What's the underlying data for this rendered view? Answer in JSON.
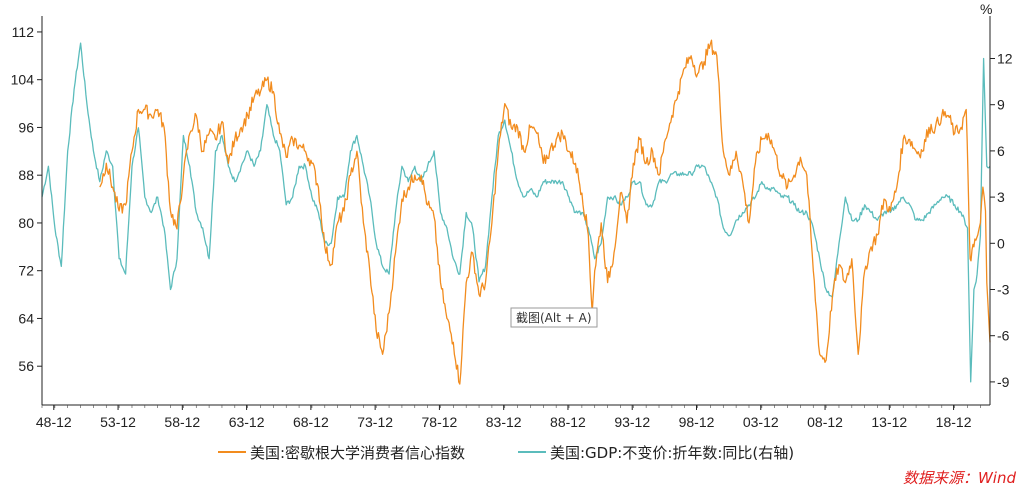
{
  "chart_data": {
    "type": "line",
    "x_tick_labels": [
      "48-12",
      "53-12",
      "58-12",
      "63-12",
      "68-12",
      "73-12",
      "78-12",
      "83-12",
      "88-12",
      "93-12",
      "98-12",
      "03-12",
      "08-12",
      "13-12",
      "18-12"
    ],
    "x_range": [
      1948.0,
      2021.75
    ],
    "left_axis": {
      "ticks": [
        56,
        64,
        72,
        80,
        88,
        96,
        104,
        112
      ],
      "ylim": [
        49.5,
        114
      ]
    },
    "right_axis": {
      "unit_label": "%",
      "ticks": [
        -9,
        -6,
        -3,
        0,
        3,
        6,
        9,
        12
      ],
      "ylim": [
        -10.5,
        14.5
      ]
    },
    "grid": false,
    "legend_position": "bottom",
    "series": [
      {
        "name": "美国:密歇根大学消费者信心指数",
        "axis": "left",
        "color": "#f28c1e",
        "points": [
          [
            1952.5,
            86
          ],
          [
            1953.0,
            90
          ],
          [
            1953.5,
            86
          ],
          [
            1954.0,
            82
          ],
          [
            1954.5,
            83
          ],
          [
            1955.0,
            92
          ],
          [
            1955.5,
            99
          ],
          [
            1956.0,
            99
          ],
          [
            1956.5,
            98
          ],
          [
            1957.0,
            99
          ],
          [
            1957.5,
            96
          ],
          [
            1958.0,
            82
          ],
          [
            1958.5,
            79
          ],
          [
            1959.0,
            88
          ],
          [
            1959.5,
            95
          ],
          [
            1960.0,
            98
          ],
          [
            1960.5,
            92
          ],
          [
            1961.0,
            95
          ],
          [
            1961.5,
            94
          ],
          [
            1962.0,
            97
          ],
          [
            1962.5,
            90
          ],
          [
            1963.0,
            94
          ],
          [
            1963.5,
            96
          ],
          [
            1964.0,
            98
          ],
          [
            1964.5,
            101
          ],
          [
            1965.0,
            102
          ],
          [
            1965.5,
            104
          ],
          [
            1966.0,
            102
          ],
          [
            1966.5,
            95
          ],
          [
            1967.0,
            91
          ],
          [
            1967.5,
            94
          ],
          [
            1968.0,
            93
          ],
          [
            1968.5,
            92
          ],
          [
            1969.0,
            90
          ],
          [
            1969.5,
            86
          ],
          [
            1970.0,
            76
          ],
          [
            1970.5,
            73
          ],
          [
            1971.0,
            80
          ],
          [
            1971.5,
            82
          ],
          [
            1972.0,
            88
          ],
          [
            1972.5,
            92
          ],
          [
            1973.0,
            80
          ],
          [
            1973.5,
            72
          ],
          [
            1974.0,
            62
          ],
          [
            1974.5,
            58
          ],
          [
            1975.0,
            65
          ],
          [
            1975.5,
            75
          ],
          [
            1976.0,
            84
          ],
          [
            1976.5,
            86
          ],
          [
            1977.0,
            88
          ],
          [
            1977.5,
            88
          ],
          [
            1978.0,
            83
          ],
          [
            1978.5,
            81
          ],
          [
            1979.0,
            70
          ],
          [
            1979.5,
            64
          ],
          [
            1980.0,
            60
          ],
          [
            1980.5,
            53
          ],
          [
            1981.0,
            70
          ],
          [
            1981.5,
            75
          ],
          [
            1982.0,
            68
          ],
          [
            1982.5,
            70
          ],
          [
            1983.0,
            80
          ],
          [
            1983.5,
            92
          ],
          [
            1984.0,
            100
          ],
          [
            1984.5,
            96
          ],
          [
            1985.0,
            96
          ],
          [
            1985.5,
            92
          ],
          [
            1986.0,
            96
          ],
          [
            1986.5,
            95
          ],
          [
            1987.0,
            90
          ],
          [
            1987.5,
            92
          ],
          [
            1988.0,
            94
          ],
          [
            1988.5,
            95
          ],
          [
            1989.0,
            92
          ],
          [
            1989.5,
            90
          ],
          [
            1990.0,
            85
          ],
          [
            1990.5,
            78
          ],
          [
            1990.8,
            65
          ],
          [
            1991.0,
            72
          ],
          [
            1991.5,
            80
          ],
          [
            1992.0,
            70
          ],
          [
            1992.5,
            75
          ],
          [
            1993.0,
            85
          ],
          [
            1993.5,
            80
          ],
          [
            1994.0,
            90
          ],
          [
            1994.5,
            94
          ],
          [
            1995.0,
            90
          ],
          [
            1995.5,
            92
          ],
          [
            1996.0,
            88
          ],
          [
            1996.5,
            94
          ],
          [
            1997.0,
            98
          ],
          [
            1997.5,
            102
          ],
          [
            1998.0,
            106
          ],
          [
            1998.5,
            108
          ],
          [
            1999.0,
            105
          ],
          [
            1999.5,
            107
          ],
          [
            2000.0,
            110
          ],
          [
            2000.5,
            108
          ],
          [
            2001.0,
            92
          ],
          [
            2001.5,
            88
          ],
          [
            2002.0,
            92
          ],
          [
            2002.5,
            87
          ],
          [
            2003.0,
            80
          ],
          [
            2003.5,
            90
          ],
          [
            2004.0,
            94
          ],
          [
            2004.5,
            95
          ],
          [
            2005.0,
            92
          ],
          [
            2005.5,
            88
          ],
          [
            2006.0,
            86
          ],
          [
            2006.5,
            88
          ],
          [
            2007.0,
            91
          ],
          [
            2007.5,
            88
          ],
          [
            2008.0,
            72
          ],
          [
            2008.5,
            58
          ],
          [
            2009.0,
            57
          ],
          [
            2009.5,
            68
          ],
          [
            2010.0,
            73
          ],
          [
            2010.5,
            70
          ],
          [
            2011.0,
            74
          ],
          [
            2011.5,
            58
          ],
          [
            2012.0,
            72
          ],
          [
            2012.5,
            76
          ],
          [
            2013.0,
            78
          ],
          [
            2013.5,
            84
          ],
          [
            2014.0,
            82
          ],
          [
            2014.5,
            86
          ],
          [
            2015.0,
            94
          ],
          [
            2015.5,
            94
          ],
          [
            2016.0,
            92
          ],
          [
            2016.5,
            92
          ],
          [
            2017.0,
            96
          ],
          [
            2017.5,
            96
          ],
          [
            2018.0,
            98
          ],
          [
            2018.5,
            98
          ],
          [
            2019.0,
            95
          ],
          [
            2019.5,
            96
          ],
          [
            2019.9,
            99
          ],
          [
            2020.2,
            74
          ],
          [
            2020.5,
            76
          ],
          [
            2020.8,
            78
          ],
          [
            2021.0,
            80
          ],
          [
            2021.2,
            86
          ],
          [
            2021.4,
            82
          ],
          [
            2021.5,
            70
          ],
          [
            2021.6,
            66
          ],
          [
            2021.75,
            60
          ]
        ]
      },
      {
        "name": "美国:GDP:不变价:折年数:同比(右轴)",
        "axis": "right",
        "color": "#5bbcbc",
        "points": [
          [
            1948.0,
            3
          ],
          [
            1948.5,
            5
          ],
          [
            1949.0,
            1
          ],
          [
            1949.5,
            -1.5
          ],
          [
            1950.0,
            6
          ],
          [
            1950.5,
            10
          ],
          [
            1951.0,
            13
          ],
          [
            1951.5,
            9
          ],
          [
            1952.0,
            6
          ],
          [
            1952.5,
            4
          ],
          [
            1953.0,
            6
          ],
          [
            1953.5,
            5
          ],
          [
            1954.0,
            -1
          ],
          [
            1954.5,
            -2
          ],
          [
            1955.0,
            5
          ],
          [
            1955.5,
            7.5
          ],
          [
            1956.0,
            3
          ],
          [
            1956.5,
            2
          ],
          [
            1957.0,
            3
          ],
          [
            1957.5,
            1
          ],
          [
            1958.0,
            -3
          ],
          [
            1958.5,
            -1
          ],
          [
            1959.0,
            7
          ],
          [
            1959.5,
            5
          ],
          [
            1960.0,
            2
          ],
          [
            1960.5,
            1
          ],
          [
            1961.0,
            -1
          ],
          [
            1961.5,
            6
          ],
          [
            1962.0,
            7
          ],
          [
            1962.5,
            5
          ],
          [
            1963.0,
            4
          ],
          [
            1963.5,
            5
          ],
          [
            1964.0,
            6
          ],
          [
            1964.5,
            5
          ],
          [
            1965.0,
            6
          ],
          [
            1965.5,
            9
          ],
          [
            1966.0,
            7
          ],
          [
            1966.5,
            6
          ],
          [
            1967.0,
            2.5
          ],
          [
            1967.5,
            3
          ],
          [
            1968.0,
            5
          ],
          [
            1968.5,
            5
          ],
          [
            1969.0,
            3
          ],
          [
            1969.5,
            2
          ],
          [
            1970.0,
            0
          ],
          [
            1970.5,
            0
          ],
          [
            1971.0,
            3
          ],
          [
            1971.5,
            3
          ],
          [
            1972.0,
            6
          ],
          [
            1972.5,
            7
          ],
          [
            1973.0,
            5
          ],
          [
            1973.5,
            3
          ],
          [
            1974.0,
            0
          ],
          [
            1974.5,
            -1.5
          ],
          [
            1975.0,
            -2
          ],
          [
            1975.5,
            2
          ],
          [
            1976.0,
            5
          ],
          [
            1976.5,
            4
          ],
          [
            1977.0,
            5
          ],
          [
            1977.5,
            4
          ],
          [
            1978.0,
            5
          ],
          [
            1978.5,
            6
          ],
          [
            1979.0,
            2
          ],
          [
            1979.5,
            1
          ],
          [
            1980.0,
            -1
          ],
          [
            1980.5,
            -2
          ],
          [
            1981.0,
            2
          ],
          [
            1981.5,
            1
          ],
          [
            1982.0,
            -2.5
          ],
          [
            1982.5,
            -1.5
          ],
          [
            1983.0,
            3
          ],
          [
            1983.5,
            7
          ],
          [
            1984.0,
            8
          ],
          [
            1984.5,
            6
          ],
          [
            1985.0,
            4
          ],
          [
            1985.5,
            3
          ],
          [
            1986.0,
            3.5
          ],
          [
            1986.5,
            3
          ],
          [
            1987.0,
            4
          ],
          [
            1987.5,
            4
          ],
          [
            1988.0,
            4
          ],
          [
            1988.5,
            4
          ],
          [
            1989.0,
            3
          ],
          [
            1989.5,
            2
          ],
          [
            1990.0,
            2
          ],
          [
            1990.5,
            1
          ],
          [
            1991.0,
            -1
          ],
          [
            1991.5,
            0
          ],
          [
            1992.0,
            3
          ],
          [
            1992.5,
            3
          ],
          [
            1993.0,
            2.5
          ],
          [
            1993.5,
            3
          ],
          [
            1994.0,
            4
          ],
          [
            1994.5,
            4
          ],
          [
            1995.0,
            2.5
          ],
          [
            1995.5,
            2.5
          ],
          [
            1996.0,
            4
          ],
          [
            1996.5,
            4
          ],
          [
            1997.0,
            4.5
          ],
          [
            1997.5,
            4.5
          ],
          [
            1998.0,
            4.5
          ],
          [
            1998.5,
            4.5
          ],
          [
            1999.0,
            5
          ],
          [
            1999.5,
            5
          ],
          [
            2000.0,
            4
          ],
          [
            2000.5,
            3
          ],
          [
            2001.0,
            1
          ],
          [
            2001.5,
            0.5
          ],
          [
            2002.0,
            1.5
          ],
          [
            2002.5,
            2
          ],
          [
            2003.0,
            2.5
          ],
          [
            2003.5,
            3
          ],
          [
            2004.0,
            4
          ],
          [
            2004.5,
            3.5
          ],
          [
            2005.0,
            3.5
          ],
          [
            2005.5,
            3
          ],
          [
            2006.0,
            3
          ],
          [
            2006.5,
            2.5
          ],
          [
            2007.0,
            2
          ],
          [
            2007.5,
            2
          ],
          [
            2008.0,
            1
          ],
          [
            2008.5,
            -1
          ],
          [
            2009.0,
            -3
          ],
          [
            2009.5,
            -3.5
          ],
          [
            2010.0,
            0
          ],
          [
            2010.5,
            3
          ],
          [
            2011.0,
            1.5
          ],
          [
            2011.5,
            1.5
          ],
          [
            2012.0,
            2.5
          ],
          [
            2012.5,
            2
          ],
          [
            2013.0,
            1.5
          ],
          [
            2013.5,
            2
          ],
          [
            2014.0,
            2
          ],
          [
            2014.5,
            2.5
          ],
          [
            2015.0,
            3
          ],
          [
            2015.5,
            2.5
          ],
          [
            2016.0,
            1.5
          ],
          [
            2016.5,
            1.5
          ],
          [
            2017.0,
            2
          ],
          [
            2017.5,
            2.5
          ],
          [
            2018.0,
            3
          ],
          [
            2018.5,
            3
          ],
          [
            2019.0,
            2.5
          ],
          [
            2019.5,
            2
          ],
          [
            2020.0,
            1
          ],
          [
            2020.25,
            -9
          ],
          [
            2020.5,
            -3
          ],
          [
            2020.75,
            -2
          ],
          [
            2021.0,
            0.5
          ],
          [
            2021.25,
            12
          ],
          [
            2021.5,
            5
          ],
          [
            2021.75,
            5
          ]
        ]
      }
    ]
  },
  "legend": {
    "items": [
      {
        "label": "美国:密歇根大学消费者信心指数",
        "color": "#f28c1e"
      },
      {
        "label": "美国:GDP:不变价:折年数:同比(右轴)",
        "color": "#5bbcbc"
      }
    ]
  },
  "source_note": "数据来源：Wind",
  "tooltip": {
    "text": "截图(Alt + A)"
  }
}
